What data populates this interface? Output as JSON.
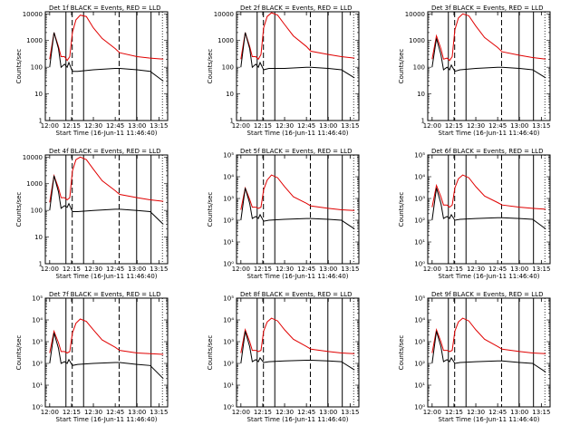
{
  "colors": {
    "events": "#000000",
    "lld": "#e00000",
    "background": "#ffffff"
  },
  "chart_data": {
    "type": "line",
    "grid": false,
    "x_tick_labels": [
      "12:00",
      "12:15",
      "12:30",
      "12:45",
      "13:00",
      "13:15"
    ],
    "x_tick_hours": [
      12.0,
      12.25,
      12.5,
      12.75,
      13.0,
      13.25
    ],
    "xlim_hours": [
      11.95,
      13.35
    ],
    "xlabel": "Start Time (16-Jun-11 11:46:40)",
    "ylabel": "Counts/sec",
    "y_scale": "log",
    "solid_vlines_hours": [
      12.186,
      12.388,
      12.995,
      13.16
    ],
    "dashed_vlines_hours": [
      12.258,
      12.795
    ],
    "dotted_vlines_hours": [
      13.29
    ],
    "panels": [
      {
        "title": "Det 1f BLACK = Events, RED = LLD",
        "ylim": [
          1,
          12000
        ],
        "y_ticks": [
          1,
          10,
          100,
          1000,
          10000
        ],
        "y_tick_labels": [
          "1",
          "10",
          "100",
          "1000",
          "10000"
        ],
        "series": [
          {
            "name": "BLACK = Events",
            "color": "#000000",
            "x": [
              12.0,
              12.05,
              12.1,
              12.13,
              12.17,
              12.2,
              12.22,
              12.26,
              12.32,
              12.5,
              12.75,
              12.8,
              13.0,
              13.15,
              13.3
            ],
            "y": [
              100,
              2000,
              500,
              100,
              130,
              100,
              150,
              70,
              70,
              80,
              90,
              90,
              80,
              70,
              30
            ]
          },
          {
            "name": "RED = LLD",
            "color": "#e00000",
            "x": [
              12.0,
              12.05,
              12.1,
              12.13,
              12.17,
              12.2,
              12.23,
              12.26,
              12.3,
              12.35,
              12.42,
              12.5,
              12.6,
              12.75,
              12.8,
              13.0,
              13.15,
              13.3
            ],
            "y": [
              200,
              2000,
              600,
              250,
              250,
              180,
              250,
              2000,
              6000,
              9000,
              8000,
              3000,
              1200,
              500,
              350,
              250,
              220,
              200
            ]
          }
        ]
      },
      {
        "title": "Det 2f BLACK = Events, RED = LLD",
        "ylim": [
          1,
          12000
        ],
        "y_ticks": [
          1,
          10,
          100,
          1000,
          10000
        ],
        "y_tick_labels": [
          "1",
          "10",
          "100",
          "1000",
          "10000"
        ],
        "series": [
          {
            "name": "BLACK = Events",
            "color": "#000000",
            "x": [
              12.0,
              12.05,
              12.1,
              12.13,
              12.17,
              12.2,
              12.22,
              12.26,
              12.32,
              12.5,
              12.75,
              12.8,
              13.0,
              13.15,
              13.3
            ],
            "y": [
              100,
              2000,
              500,
              100,
              130,
              100,
              150,
              80,
              90,
              90,
              100,
              100,
              90,
              80,
              40
            ]
          },
          {
            "name": "RED = LLD",
            "color": "#e00000",
            "x": [
              12.0,
              12.05,
              12.1,
              12.13,
              12.17,
              12.2,
              12.23,
              12.26,
              12.3,
              12.35,
              12.42,
              12.5,
              12.6,
              12.75,
              12.8,
              13.0,
              13.15,
              13.3
            ],
            "y": [
              200,
              2000,
              600,
              250,
              250,
              200,
              300,
              3000,
              8000,
              11000,
              9000,
              4000,
              1500,
              600,
              400,
              300,
              250,
              220
            ]
          }
        ]
      },
      {
        "title": "Det 3f BLACK = Events, RED = LLD",
        "ylim": [
          1,
          12000
        ],
        "y_ticks": [
          1,
          10,
          100,
          1000,
          10000
        ],
        "y_tick_labels": [
          "1",
          "10",
          "100",
          "1000",
          "10000"
        ],
        "series": [
          {
            "name": "BLACK = Events",
            "color": "#000000",
            "x": [
              12.0,
              12.05,
              12.1,
              12.13,
              12.17,
              12.2,
              12.22,
              12.26,
              12.32,
              12.5,
              12.75,
              12.8,
              13.0,
              13.15,
              13.3
            ],
            "y": [
              100,
              1200,
              300,
              80,
              100,
              80,
              120,
              70,
              80,
              90,
              100,
              100,
              90,
              80,
              40
            ]
          },
          {
            "name": "RED = LLD",
            "color": "#e00000",
            "x": [
              12.0,
              12.05,
              12.1,
              12.13,
              12.17,
              12.2,
              12.23,
              12.26,
              12.3,
              12.35,
              12.42,
              12.5,
              12.6,
              12.75,
              12.8,
              13.0,
              13.15,
              13.3
            ],
            "y": [
              200,
              1500,
              500,
              200,
              220,
              180,
              250,
              2500,
              7000,
              10000,
              8500,
              3500,
              1300,
              550,
              380,
              280,
              230,
              200
            ]
          }
        ]
      },
      {
        "title": "Det 4f BLACK = Events, RED = LLD",
        "ylim": [
          1,
          12000
        ],
        "y_ticks": [
          1,
          10,
          100,
          1000,
          10000
        ],
        "y_tick_labels": [
          "1",
          "10",
          "100",
          "1000",
          "10000"
        ],
        "series": [
          {
            "name": "BLACK = Events",
            "color": "#000000",
            "x": [
              12.0,
              12.05,
              12.1,
              12.13,
              12.17,
              12.2,
              12.22,
              12.26,
              12.32,
              12.5,
              12.75,
              12.8,
              13.0,
              13.15,
              13.3
            ],
            "y": [
              100,
              2000,
              500,
              120,
              150,
              130,
              180,
              90,
              90,
              100,
              110,
              110,
              100,
              90,
              30
            ]
          },
          {
            "name": "RED = LLD",
            "color": "#e00000",
            "x": [
              12.0,
              12.05,
              12.1,
              12.13,
              12.17,
              12.2,
              12.23,
              12.26,
              12.3,
              12.35,
              12.42,
              12.5,
              12.6,
              12.75,
              12.8,
              13.0,
              13.15,
              13.3
            ],
            "y": [
              200,
              2000,
              700,
              300,
              300,
              250,
              300,
              3000,
              8000,
              10000,
              8000,
              3500,
              1300,
              550,
              400,
              300,
              250,
              220
            ]
          }
        ]
      },
      {
        "title": "Det 5f BLACK = Events, RED = LLD",
        "ylim": [
          1,
          100000
        ],
        "y_ticks": [
          1,
          10,
          100,
          1000,
          10000,
          100000
        ],
        "y_tick_labels": [
          "10⁰",
          "10¹",
          "10²",
          "10³",
          "10⁴",
          "10⁵"
        ],
        "series": [
          {
            "name": "BLACK = Events",
            "color": "#000000",
            "x": [
              12.0,
              12.05,
              12.1,
              12.13,
              12.17,
              12.2,
              12.22,
              12.26,
              12.32,
              12.5,
              12.75,
              12.8,
              13.0,
              13.15,
              13.3
            ],
            "y": [
              100,
              3000,
              600,
              120,
              150,
              120,
              180,
              90,
              100,
              110,
              120,
              120,
              110,
              100,
              40
            ]
          },
          {
            "name": "RED = LLD",
            "color": "#e00000",
            "x": [
              12.0,
              12.05,
              12.1,
              12.13,
              12.17,
              12.2,
              12.23,
              12.26,
              12.3,
              12.35,
              12.42,
              12.5,
              12.6,
              12.75,
              12.8,
              13.0,
              13.15,
              13.3
            ],
            "y": [
              300,
              3000,
              900,
              400,
              400,
              350,
              400,
              2500,
              7000,
              12000,
              9000,
              3500,
              1200,
              600,
              450,
              350,
              300,
              280
            ]
          }
        ]
      },
      {
        "title": "Det 6f BLACK = Events, RED = LLD",
        "ylim": [
          1,
          100000
        ],
        "y_ticks": [
          1,
          10,
          100,
          1000,
          10000,
          100000
        ],
        "y_tick_labels": [
          "10⁰",
          "10¹",
          "10²",
          "10³",
          "10⁴",
          "10⁵"
        ],
        "series": [
          {
            "name": "BLACK = Events",
            "color": "#000000",
            "x": [
              12.0,
              12.05,
              12.1,
              12.13,
              12.17,
              12.2,
              12.22,
              12.26,
              12.32,
              12.5,
              12.75,
              12.8,
              13.0,
              13.15,
              13.3
            ],
            "y": [
              100,
              3000,
              600,
              120,
              150,
              120,
              180,
              100,
              110,
              120,
              130,
              130,
              120,
              110,
              40
            ]
          },
          {
            "name": "RED = LLD",
            "color": "#e00000",
            "x": [
              12.0,
              12.05,
              12.1,
              12.13,
              12.17,
              12.2,
              12.23,
              12.26,
              12.3,
              12.35,
              12.42,
              12.5,
              12.6,
              12.75,
              12.8,
              13.0,
              13.15,
              13.3
            ],
            "y": [
              400,
              4000,
              1200,
              500,
              500,
              400,
              500,
              3000,
              8000,
              12000,
              9000,
              3500,
              1300,
              650,
              500,
              400,
              350,
              320
            ]
          }
        ]
      },
      {
        "title": "Det 7f BLACK = Events, RED = LLD",
        "ylim": [
          1,
          100000
        ],
        "y_ticks": [
          1,
          10,
          100,
          1000,
          10000,
          100000
        ],
        "y_tick_labels": [
          "10⁰",
          "10¹",
          "10²",
          "10³",
          "10⁴",
          "10⁵"
        ],
        "series": [
          {
            "name": "BLACK = Events",
            "color": "#000000",
            "x": [
              12.0,
              12.05,
              12.1,
              12.13,
              12.17,
              12.2,
              12.22,
              12.26,
              12.32,
              12.5,
              12.75,
              12.8,
              13.0,
              13.15,
              13.3
            ],
            "y": [
              100,
              2500,
              500,
              100,
              120,
              100,
              150,
              80,
              90,
              100,
              110,
              110,
              90,
              80,
              20
            ]
          },
          {
            "name": "RED = LLD",
            "color": "#e00000",
            "x": [
              12.0,
              12.05,
              12.1,
              12.13,
              12.17,
              12.2,
              12.23,
              12.26,
              12.3,
              12.35,
              12.42,
              12.5,
              12.6,
              12.75,
              12.8,
              13.0,
              13.15,
              13.3
            ],
            "y": [
              300,
              3000,
              900,
              350,
              350,
              300,
              350,
              2500,
              7000,
              11000,
              8500,
              3500,
              1200,
              550,
              400,
              300,
              280,
              260
            ]
          }
        ]
      },
      {
        "title": "Det 8f BLACK = Events, RED = LLD",
        "ylim": [
          1,
          100000
        ],
        "y_ticks": [
          1,
          10,
          100,
          1000,
          10000,
          100000
        ],
        "y_tick_labels": [
          "10⁰",
          "10¹",
          "10²",
          "10³",
          "10⁴",
          "10⁵"
        ],
        "series": [
          {
            "name": "BLACK = Events",
            "color": "#000000",
            "x": [
              12.0,
              12.05,
              12.1,
              12.13,
              12.17,
              12.2,
              12.22,
              12.26,
              12.32,
              12.5,
              12.75,
              12.8,
              13.0,
              13.15,
              13.3
            ],
            "y": [
              100,
              3000,
              600,
              120,
              150,
              120,
              180,
              110,
              120,
              130,
              140,
              140,
              130,
              120,
              50
            ]
          },
          {
            "name": "RED = LLD",
            "color": "#e00000",
            "x": [
              12.0,
              12.05,
              12.1,
              12.13,
              12.17,
              12.2,
              12.23,
              12.26,
              12.3,
              12.35,
              12.42,
              12.5,
              12.6,
              12.75,
              12.8,
              13.0,
              13.15,
              13.3
            ],
            "y": [
              300,
              3500,
              1000,
              400,
              400,
              350,
              400,
              3000,
              8000,
              12000,
              9000,
              3500,
              1300,
              600,
              450,
              350,
              300,
              280
            ]
          }
        ]
      },
      {
        "title": "Det 9f BLACK = Events, RED = LLD",
        "ylim": [
          1,
          100000
        ],
        "y_ticks": [
          1,
          10,
          100,
          1000,
          10000,
          100000
        ],
        "y_tick_labels": [
          "10⁰",
          "10¹",
          "10²",
          "10³",
          "10⁴",
          "10⁵"
        ],
        "series": [
          {
            "name": "BLACK = Events",
            "color": "#000000",
            "x": [
              12.0,
              12.05,
              12.1,
              12.13,
              12.17,
              12.2,
              12.22,
              12.26,
              12.32,
              12.5,
              12.75,
              12.8,
              13.0,
              13.15,
              13.3
            ],
            "y": [
              100,
              3000,
              600,
              120,
              150,
              120,
              180,
              100,
              110,
              120,
              130,
              130,
              110,
              100,
              40
            ]
          },
          {
            "name": "RED = LLD",
            "color": "#e00000",
            "x": [
              12.0,
              12.05,
              12.1,
              12.13,
              12.17,
              12.2,
              12.23,
              12.26,
              12.3,
              12.35,
              12.42,
              12.5,
              12.6,
              12.75,
              12.8,
              13.0,
              13.15,
              13.3
            ],
            "y": [
              300,
              3500,
              1000,
              400,
              400,
              350,
              400,
              3000,
              8000,
              12000,
              9000,
              3500,
              1300,
              600,
              450,
              350,
              300,
              280
            ]
          }
        ]
      }
    ]
  }
}
